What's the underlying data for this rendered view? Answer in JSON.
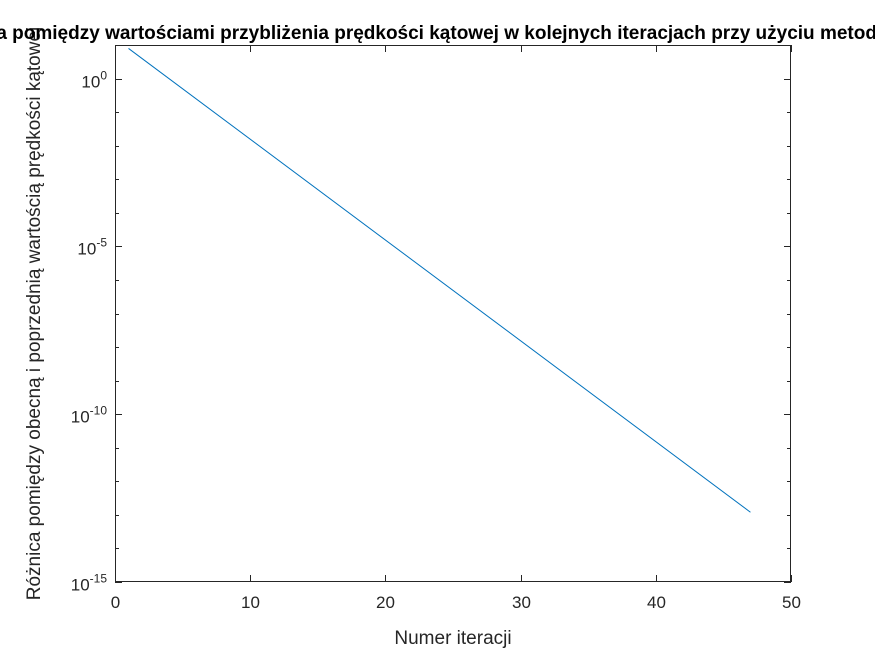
{
  "chart_data": {
    "type": "line",
    "title": "Różnica pomiędzy wartościami przybliżenia prędkości kątowej w kolejnych iteracjach przy użyciu metody Newtona",
    "xlabel": "Numer iteracji",
    "ylabel": "Różnica pomiędzy obecną i poprzednią wartością prędkości kątowej",
    "xlim": [
      0,
      50
    ],
    "ylim": [
      1e-15,
      10.0
    ],
    "yscale": "log",
    "grid": false,
    "x_ticks": [
      0,
      10,
      20,
      30,
      40,
      50
    ],
    "x_tick_labels": [
      "0",
      "10",
      "20",
      "30",
      "40",
      "50"
    ],
    "y_ticks": [
      1e-15,
      1e-10,
      1e-05,
      1
    ],
    "y_tick_labels": [
      {
        "base": "10",
        "exp": "-15"
      },
      {
        "base": "10",
        "exp": "-10"
      },
      {
        "base": "10",
        "exp": "-5"
      },
      {
        "base": "10",
        "exp": "0"
      }
    ],
    "series": [
      {
        "color": "#0072BD",
        "x": [
          1,
          47
        ],
        "y": [
          7.9,
          1.2e-13
        ]
      }
    ]
  }
}
